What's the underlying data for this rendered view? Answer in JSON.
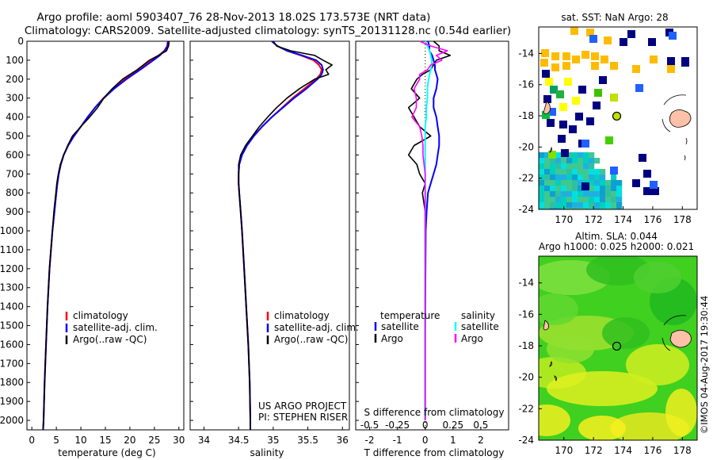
{
  "title": {
    "line1": "Argo profile: aoml 5903407_76 28-Nov-2013 18.02S 173.573E (NRT data)",
    "line2": "Climatology: CARS2009. Satellite-adjusted climatology: synTS_20131128.nc (0.54d earlier)"
  },
  "colors": {
    "climatology": "#ff0000",
    "satellite": "#0000ff",
    "argo": "#000000",
    "sat_salinity": "#00ffff",
    "argo_salinity": "#ff00ff"
  },
  "depth_ticks": [
    "0",
    "100",
    "200",
    "300",
    "400",
    "500",
    "600",
    "700",
    "800",
    "900",
    "1000",
    "1100",
    "1200",
    "1300",
    "1400",
    "1500",
    "1600",
    "1700",
    "1800",
    "1900",
    "2000"
  ],
  "chart_data": [
    {
      "type": "line",
      "panel": "temperature",
      "xlabel": "temperature (deg C)",
      "xlim": [
        -1,
        31
      ],
      "xticks": [
        "0",
        "5",
        "10",
        "15",
        "20",
        "25",
        "30"
      ],
      "ylim": [
        2050,
        0
      ],
      "legend": [
        "climatology",
        "satellite-adj. clim.",
        "Argo(..raw -QC)"
      ],
      "depth": [
        0,
        25,
        50,
        75,
        100,
        150,
        200,
        250,
        300,
        350,
        400,
        450,
        500,
        550,
        600,
        650,
        700,
        750,
        800,
        900,
        1000,
        1200,
        1400,
        1600,
        1800,
        2000,
        2050
      ],
      "series": [
        {
          "name": "climatology",
          "values": [
            27.7,
            27.6,
            27.0,
            25.9,
            24.5,
            21.8,
            19.0,
            16.6,
            14.6,
            12.9,
            11.4,
            10.0,
            8.6,
            7.4,
            6.5,
            5.9,
            5.5,
            5.2,
            5.0,
            4.6,
            4.2,
            3.6,
            3.2,
            2.9,
            2.6,
            2.4,
            2.3
          ]
        },
        {
          "name": "satellite-adj. clim.",
          "values": [
            27.8,
            27.7,
            27.1,
            26.1,
            24.8,
            22.1,
            19.3,
            16.8,
            14.7,
            12.9,
            11.4,
            10.0,
            8.6,
            7.4,
            6.5,
            5.9,
            5.5,
            5.2,
            5.0,
            4.6,
            4.2,
            3.6,
            3.2,
            2.9,
            2.6,
            2.4,
            2.3
          ]
        },
        {
          "name": "Argo(..raw -QC)",
          "values": [
            28.0,
            27.9,
            27.5,
            25.8,
            24.0,
            21.5,
            18.5,
            16.4,
            14.7,
            13.4,
            11.8,
            10.0,
            8.3,
            7.3,
            6.5,
            5.8,
            5.4,
            5.1,
            4.9,
            4.5,
            4.2,
            3.6,
            3.2,
            2.9,
            2.6,
            2.4,
            2.3
          ]
        }
      ]
    },
    {
      "type": "line",
      "panel": "salinity",
      "xlabel": "salinity",
      "xlim": [
        33.8,
        36.1
      ],
      "xticks": [
        "34",
        "34.5",
        "35",
        "35.5",
        "36"
      ],
      "ylim": [
        2050,
        0
      ],
      "legend": [
        "climatology",
        "satellite-adj. clim.",
        "Argo(..raw -QC)"
      ],
      "annotation": [
        "US ARGO PROJECT",
        "PI: STEPHEN RISER"
      ],
      "depth": [
        0,
        25,
        50,
        75,
        100,
        125,
        150,
        175,
        200,
        250,
        300,
        350,
        400,
        450,
        500,
        550,
        600,
        650,
        700,
        750,
        800,
        900,
        1000,
        1200,
        1400,
        1600,
        1800,
        2000,
        2050
      ],
      "series": [
        {
          "name": "climatology",
          "values": [
            34.98,
            35.06,
            35.2,
            35.4,
            35.58,
            35.66,
            35.7,
            35.68,
            35.62,
            35.45,
            35.28,
            35.13,
            34.98,
            34.84,
            34.72,
            34.62,
            34.55,
            34.51,
            34.5,
            34.5,
            34.51,
            34.53,
            34.55,
            34.58,
            34.61,
            34.64,
            34.66,
            34.67,
            34.67
          ]
        },
        {
          "name": "satellite-adj. clim.",
          "values": [
            34.98,
            35.06,
            35.2,
            35.42,
            35.62,
            35.7,
            35.72,
            35.7,
            35.64,
            35.48,
            35.3,
            35.14,
            34.98,
            34.84,
            34.72,
            34.62,
            34.55,
            34.51,
            34.5,
            34.5,
            34.51,
            34.53,
            34.55,
            34.58,
            34.61,
            34.64,
            34.66,
            34.67,
            34.67
          ]
        },
        {
          "name": "Argo(..raw -QC)",
          "values": [
            35.0,
            35.05,
            35.25,
            35.6,
            35.72,
            35.85,
            35.76,
            35.8,
            35.6,
            35.38,
            35.2,
            35.05,
            34.92,
            34.8,
            34.7,
            34.6,
            34.53,
            34.5,
            34.5,
            34.5,
            34.51,
            34.53,
            34.55,
            34.58,
            34.61,
            34.64,
            34.66,
            34.67,
            34.67
          ]
        }
      ]
    },
    {
      "type": "line",
      "panel": "difference",
      "xlabel_top": "S difference from climatology",
      "xlabel": "T difference from climatology",
      "xlim": [
        -2.5,
        3.0
      ],
      "xticks": [
        "-2",
        "-1",
        "0",
        "1",
        "2"
      ],
      "xticks_top": [
        "-0.5",
        "-0.25",
        "0",
        "0.25",
        "0.5"
      ],
      "ylim": [
        2050,
        0
      ],
      "legend": [
        {
          "group": "temperature",
          "items": [
            "satellite",
            "Argo"
          ]
        },
        {
          "group": "salinity",
          "items": [
            "satellite",
            "Argo"
          ]
        }
      ],
      "depth": [
        0,
        25,
        50,
        75,
        100,
        125,
        150,
        175,
        200,
        250,
        300,
        350,
        400,
        450,
        500,
        550,
        600,
        650,
        700,
        750,
        800,
        900,
        1000,
        1500,
        2000
      ],
      "series": [
        {
          "name": "temperature satellite",
          "values": [
            0.1,
            0.15,
            0.15,
            0.25,
            0.3,
            0.35,
            0.35,
            0.4,
            0.45,
            0.4,
            0.3,
            0.3,
            0.4,
            0.45,
            0.5,
            0.5,
            0.45,
            0.4,
            0.3,
            0.2,
            0.1,
            0.05,
            0.02,
            0.0,
            0.0
          ]
        },
        {
          "name": "temperature Argo",
          "values": [
            0.3,
            0.5,
            0.5,
            0.9,
            0.4,
            0.3,
            0.2,
            -0.1,
            -0.3,
            -0.5,
            -0.2,
            -0.6,
            -0.4,
            -0.2,
            0.2,
            -0.4,
            -0.6,
            -0.3,
            -0.2,
            0.0,
            -0.1,
            0.0,
            0.0,
            0.0,
            0.0
          ]
        },
        {
          "name": "salinity satellite",
          "values": [
            0.0,
            0.02,
            0.04,
            0.05,
            0.06,
            0.06,
            0.05,
            0.04,
            0.03,
            0.02,
            0.02,
            0.01,
            0.01,
            0.0,
            0.0,
            0.0,
            0.0,
            0.0,
            0.0,
            0.0,
            0.0,
            0.0,
            0.0,
            0.0,
            0.0
          ]
        },
        {
          "name": "salinity Argo",
          "values": [
            -0.05,
            0.05,
            0.2,
            0.1,
            0.15,
            0.05,
            0.02,
            -0.05,
            -0.05,
            -0.1,
            -0.08,
            -0.08,
            -0.12,
            -0.05,
            -0.03,
            -0.02,
            -0.02,
            -0.01,
            0.0,
            0.0,
            0.0,
            0.0,
            0.0,
            0.0,
            0.0
          ]
        }
      ]
    }
  ],
  "maps": {
    "sst": {
      "title": "sat. SST: NaN Argo: 28",
      "xticks": [
        "170",
        "172",
        "174",
        "176",
        "178"
      ],
      "yticks": [
        "-14",
        "-16",
        "-18",
        "-20",
        "-22",
        "-24"
      ],
      "xlim": [
        168.3,
        179.0
      ],
      "ylim": [
        -24.0,
        -12.3
      ],
      "argo_position": {
        "lon": 173.57,
        "lat": -18.02
      }
    },
    "sla": {
      "title_line1": "Altim. SLA: 0.044",
      "title_line2": "Argo h1000: 0.025 h2000: 0.021",
      "xticks": [
        "170",
        "172",
        "174",
        "176",
        "178"
      ],
      "yticks": [
        "-14",
        "-16",
        "-18",
        "-20",
        "-22",
        "-24"
      ],
      "xlim": [
        168.3,
        179.0
      ],
      "ylim": [
        -24.0,
        -12.3
      ],
      "argo_position": {
        "lon": 173.57,
        "lat": -18.02
      }
    }
  },
  "side_label": "©IMOS 04-Aug-2017 19:30:44"
}
